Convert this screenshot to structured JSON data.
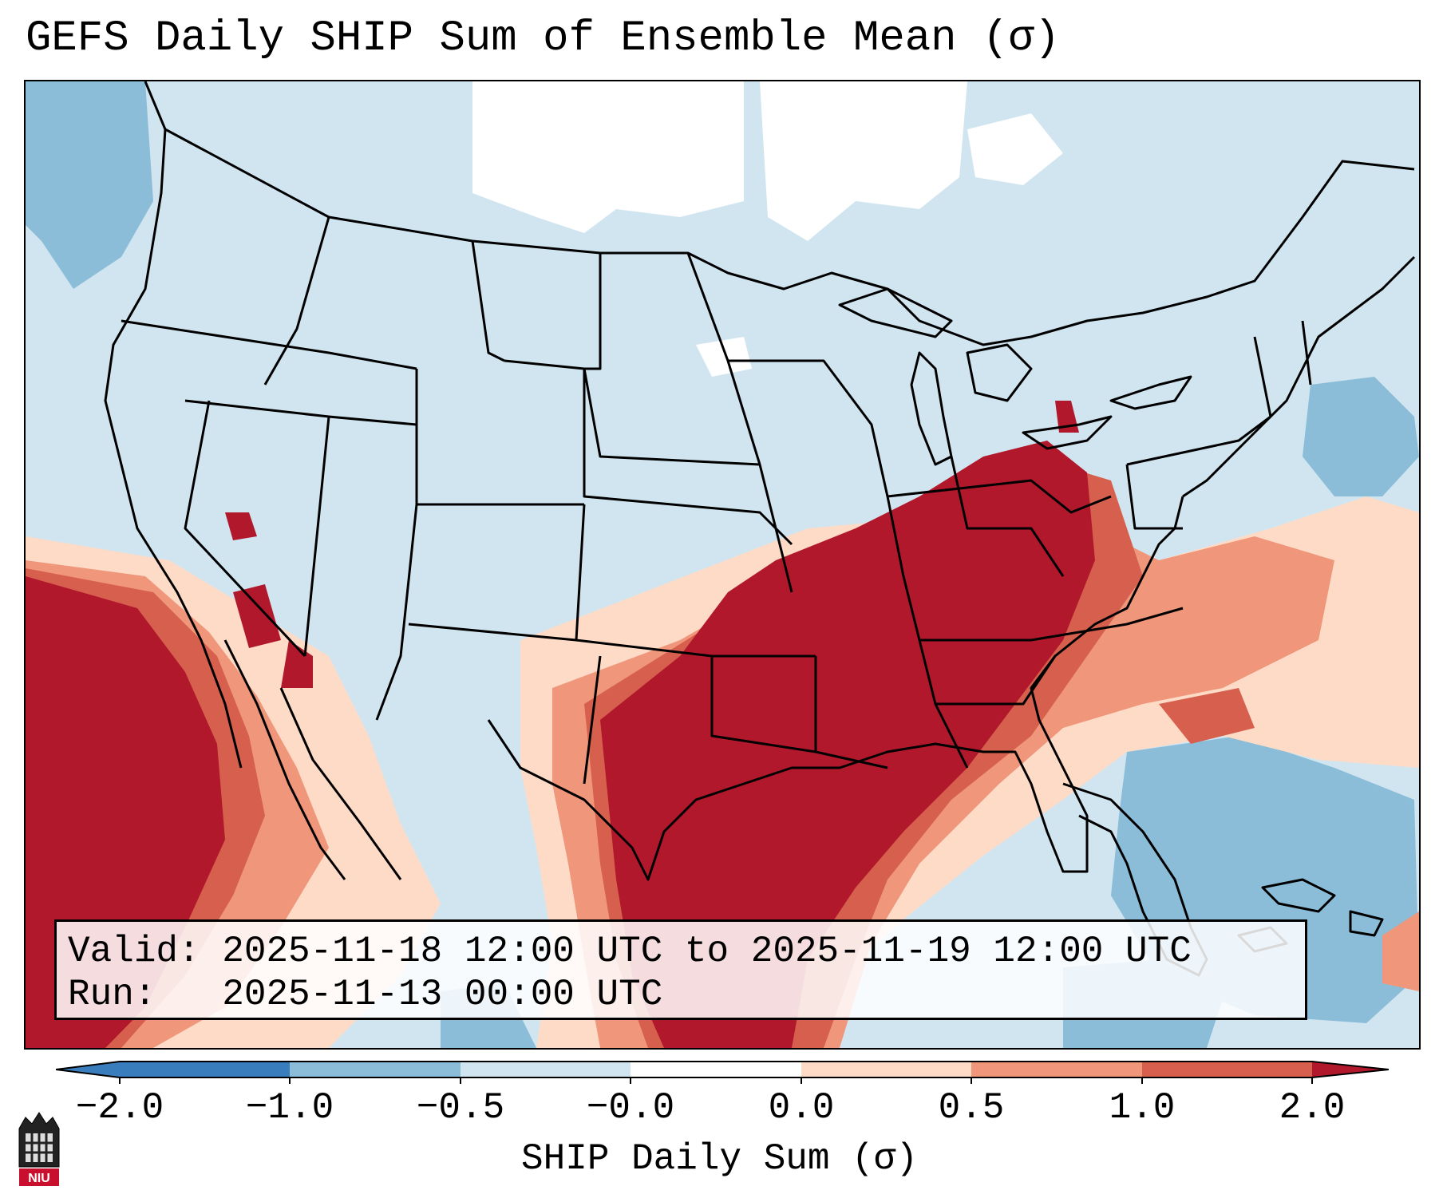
{
  "title": "GEFS Daily SHIP Sum of Ensemble Mean (σ)",
  "valid": {
    "valid_line": "Valid: 2025-11-18 12:00 UTC to 2025-11-19 12:00 UTC",
    "run_line": "Run:   2025-11-13 00:00 UTC"
  },
  "colorbar": {
    "label": "SHIP Daily Sum (σ)",
    "ticks": [
      "−2.0",
      "−1.0",
      "−0.5",
      "−0.0",
      "0.0",
      "0.5",
      "1.0",
      "2.0"
    ],
    "colors": [
      "#3a7dbd",
      "#8bbdd9",
      "#d1e5f0",
      "#ffffff",
      "#fddbc7",
      "#f0967a",
      "#d6604d",
      "#b2182b"
    ],
    "extend": "both"
  },
  "map": {
    "region": "Contiguous United States",
    "colors": {
      "neg_strong": "#3a7dbd",
      "neg_mid": "#8bbdd9",
      "neg_light": "#d1e5f0",
      "neutral": "#ffffff",
      "pos_light": "#fddbc7",
      "pos_mid": "#f0967a",
      "pos_high": "#d6604d",
      "pos_strong": "#b2182b"
    }
  },
  "logo": {
    "text": "NIU"
  }
}
